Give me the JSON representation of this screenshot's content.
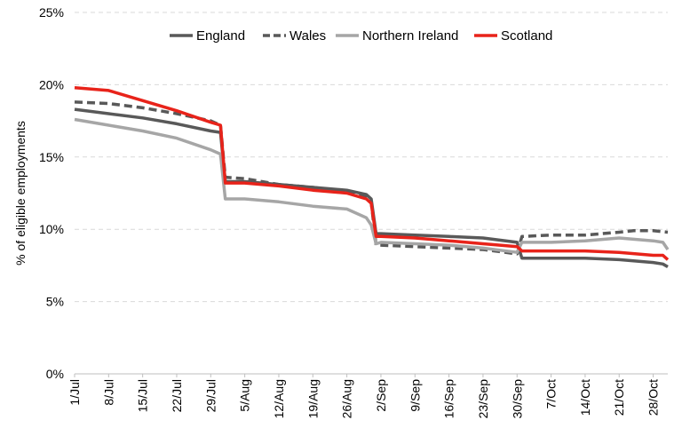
{
  "chart_data": {
    "type": "line",
    "title": "",
    "xlabel": "",
    "ylabel": "% of eligible employments",
    "ylim": [
      0,
      25
    ],
    "yticks": [
      "0%",
      "5%",
      "10%",
      "15%",
      "20%",
      "25%"
    ],
    "ytick_values": [
      0,
      5,
      10,
      15,
      20,
      25
    ],
    "grid": "horizontal dashed",
    "legend_position": "top",
    "x_range": [
      "1/Jul",
      "31/Oct"
    ],
    "categories": [
      "1/Jul",
      "8/Jul",
      "15/Jul",
      "22/Jul",
      "29/Jul",
      "5/Aug",
      "12/Aug",
      "19/Aug",
      "26/Aug",
      "2/Sep",
      "9/Sep",
      "16/Sep",
      "23/Sep",
      "30/Sep",
      "7/Oct",
      "14/Oct",
      "21/Oct",
      "28/Oct"
    ],
    "series": [
      {
        "name": "England",
        "color": "#595959",
        "dash": "solid",
        "points": [
          [
            "1/Jul",
            18.3
          ],
          [
            "8/Jul",
            18.0
          ],
          [
            "15/Jul",
            17.7
          ],
          [
            "22/Jul",
            17.3
          ],
          [
            "29/Jul",
            16.8
          ],
          [
            "31/Jul",
            16.7
          ],
          [
            "1/Aug",
            13.3
          ],
          [
            "5/Aug",
            13.3
          ],
          [
            "12/Aug",
            13.1
          ],
          [
            "19/Aug",
            12.9
          ],
          [
            "26/Aug",
            12.7
          ],
          [
            "30/Aug",
            12.4
          ],
          [
            "31/Aug",
            12.1
          ],
          [
            "1/Sep",
            9.7
          ],
          [
            "2/Sep",
            9.7
          ],
          [
            "9/Sep",
            9.6
          ],
          [
            "16/Sep",
            9.5
          ],
          [
            "23/Sep",
            9.4
          ],
          [
            "30/Sep",
            9.1
          ],
          [
            "1/Oct",
            8.0
          ],
          [
            "7/Oct",
            8.0
          ],
          [
            "14/Oct",
            8.0
          ],
          [
            "21/Oct",
            7.9
          ],
          [
            "28/Oct",
            7.7
          ],
          [
            "30/Oct",
            7.6
          ],
          [
            "31/Oct",
            7.4
          ]
        ]
      },
      {
        "name": "Wales",
        "color": "#595959",
        "dash": "dashed",
        "points": [
          [
            "1/Jul",
            18.8
          ],
          [
            "8/Jul",
            18.7
          ],
          [
            "15/Jul",
            18.4
          ],
          [
            "22/Jul",
            18.0
          ],
          [
            "29/Jul",
            17.5
          ],
          [
            "31/Jul",
            17.2
          ],
          [
            "1/Aug",
            13.6
          ],
          [
            "5/Aug",
            13.5
          ],
          [
            "12/Aug",
            13.1
          ],
          [
            "19/Aug",
            12.9
          ],
          [
            "26/Aug",
            12.6
          ],
          [
            "30/Aug",
            12.2
          ],
          [
            "31/Aug",
            11.9
          ],
          [
            "1/Sep",
            8.9
          ],
          [
            "2/Sep",
            8.9
          ],
          [
            "9/Sep",
            8.8
          ],
          [
            "16/Sep",
            8.7
          ],
          [
            "23/Sep",
            8.6
          ],
          [
            "30/Sep",
            8.3
          ],
          [
            "1/Oct",
            9.5
          ],
          [
            "7/Oct",
            9.6
          ],
          [
            "14/Oct",
            9.6
          ],
          [
            "21/Oct",
            9.8
          ],
          [
            "24/Oct",
            9.9
          ],
          [
            "28/Oct",
            9.9
          ],
          [
            "31/Oct",
            9.8
          ]
        ]
      },
      {
        "name": "Northern Ireland",
        "color": "#a6a6a6",
        "dash": "solid",
        "points": [
          [
            "1/Jul",
            17.6
          ],
          [
            "8/Jul",
            17.2
          ],
          [
            "15/Jul",
            16.8
          ],
          [
            "22/Jul",
            16.3
          ],
          [
            "29/Jul",
            15.5
          ],
          [
            "31/Jul",
            15.2
          ],
          [
            "1/Aug",
            12.1
          ],
          [
            "5/Aug",
            12.1
          ],
          [
            "12/Aug",
            11.9
          ],
          [
            "19/Aug",
            11.6
          ],
          [
            "26/Aug",
            11.4
          ],
          [
            "30/Aug",
            10.8
          ],
          [
            "31/Aug",
            10.3
          ],
          [
            "1/Sep",
            9.0
          ],
          [
            "2/Sep",
            9.1
          ],
          [
            "9/Sep",
            9.0
          ],
          [
            "16/Sep",
            8.9
          ],
          [
            "23/Sep",
            8.7
          ],
          [
            "30/Sep",
            8.4
          ],
          [
            "1/Oct",
            9.1
          ],
          [
            "7/Oct",
            9.1
          ],
          [
            "14/Oct",
            9.2
          ],
          [
            "21/Oct",
            9.4
          ],
          [
            "28/Oct",
            9.2
          ],
          [
            "30/Oct",
            9.1
          ],
          [
            "31/Oct",
            8.6
          ]
        ]
      },
      {
        "name": "Scotland",
        "color": "#e8231a",
        "dash": "solid",
        "points": [
          [
            "1/Jul",
            19.8
          ],
          [
            "8/Jul",
            19.6
          ],
          [
            "15/Jul",
            18.9
          ],
          [
            "22/Jul",
            18.2
          ],
          [
            "29/Jul",
            17.4
          ],
          [
            "31/Jul",
            17.2
          ],
          [
            "1/Aug",
            13.2
          ],
          [
            "5/Aug",
            13.2
          ],
          [
            "12/Aug",
            13.0
          ],
          [
            "19/Aug",
            12.7
          ],
          [
            "26/Aug",
            12.5
          ],
          [
            "30/Aug",
            12.1
          ],
          [
            "31/Aug",
            11.8
          ],
          [
            "1/Sep",
            9.5
          ],
          [
            "2/Sep",
            9.5
          ],
          [
            "9/Sep",
            9.4
          ],
          [
            "16/Sep",
            9.2
          ],
          [
            "23/Sep",
            9.0
          ],
          [
            "30/Sep",
            8.8
          ],
          [
            "1/Oct",
            8.5
          ],
          [
            "7/Oct",
            8.5
          ],
          [
            "14/Oct",
            8.5
          ],
          [
            "21/Oct",
            8.4
          ],
          [
            "28/Oct",
            8.2
          ],
          [
            "30/Oct",
            8.2
          ],
          [
            "31/Oct",
            7.9
          ]
        ]
      }
    ]
  }
}
